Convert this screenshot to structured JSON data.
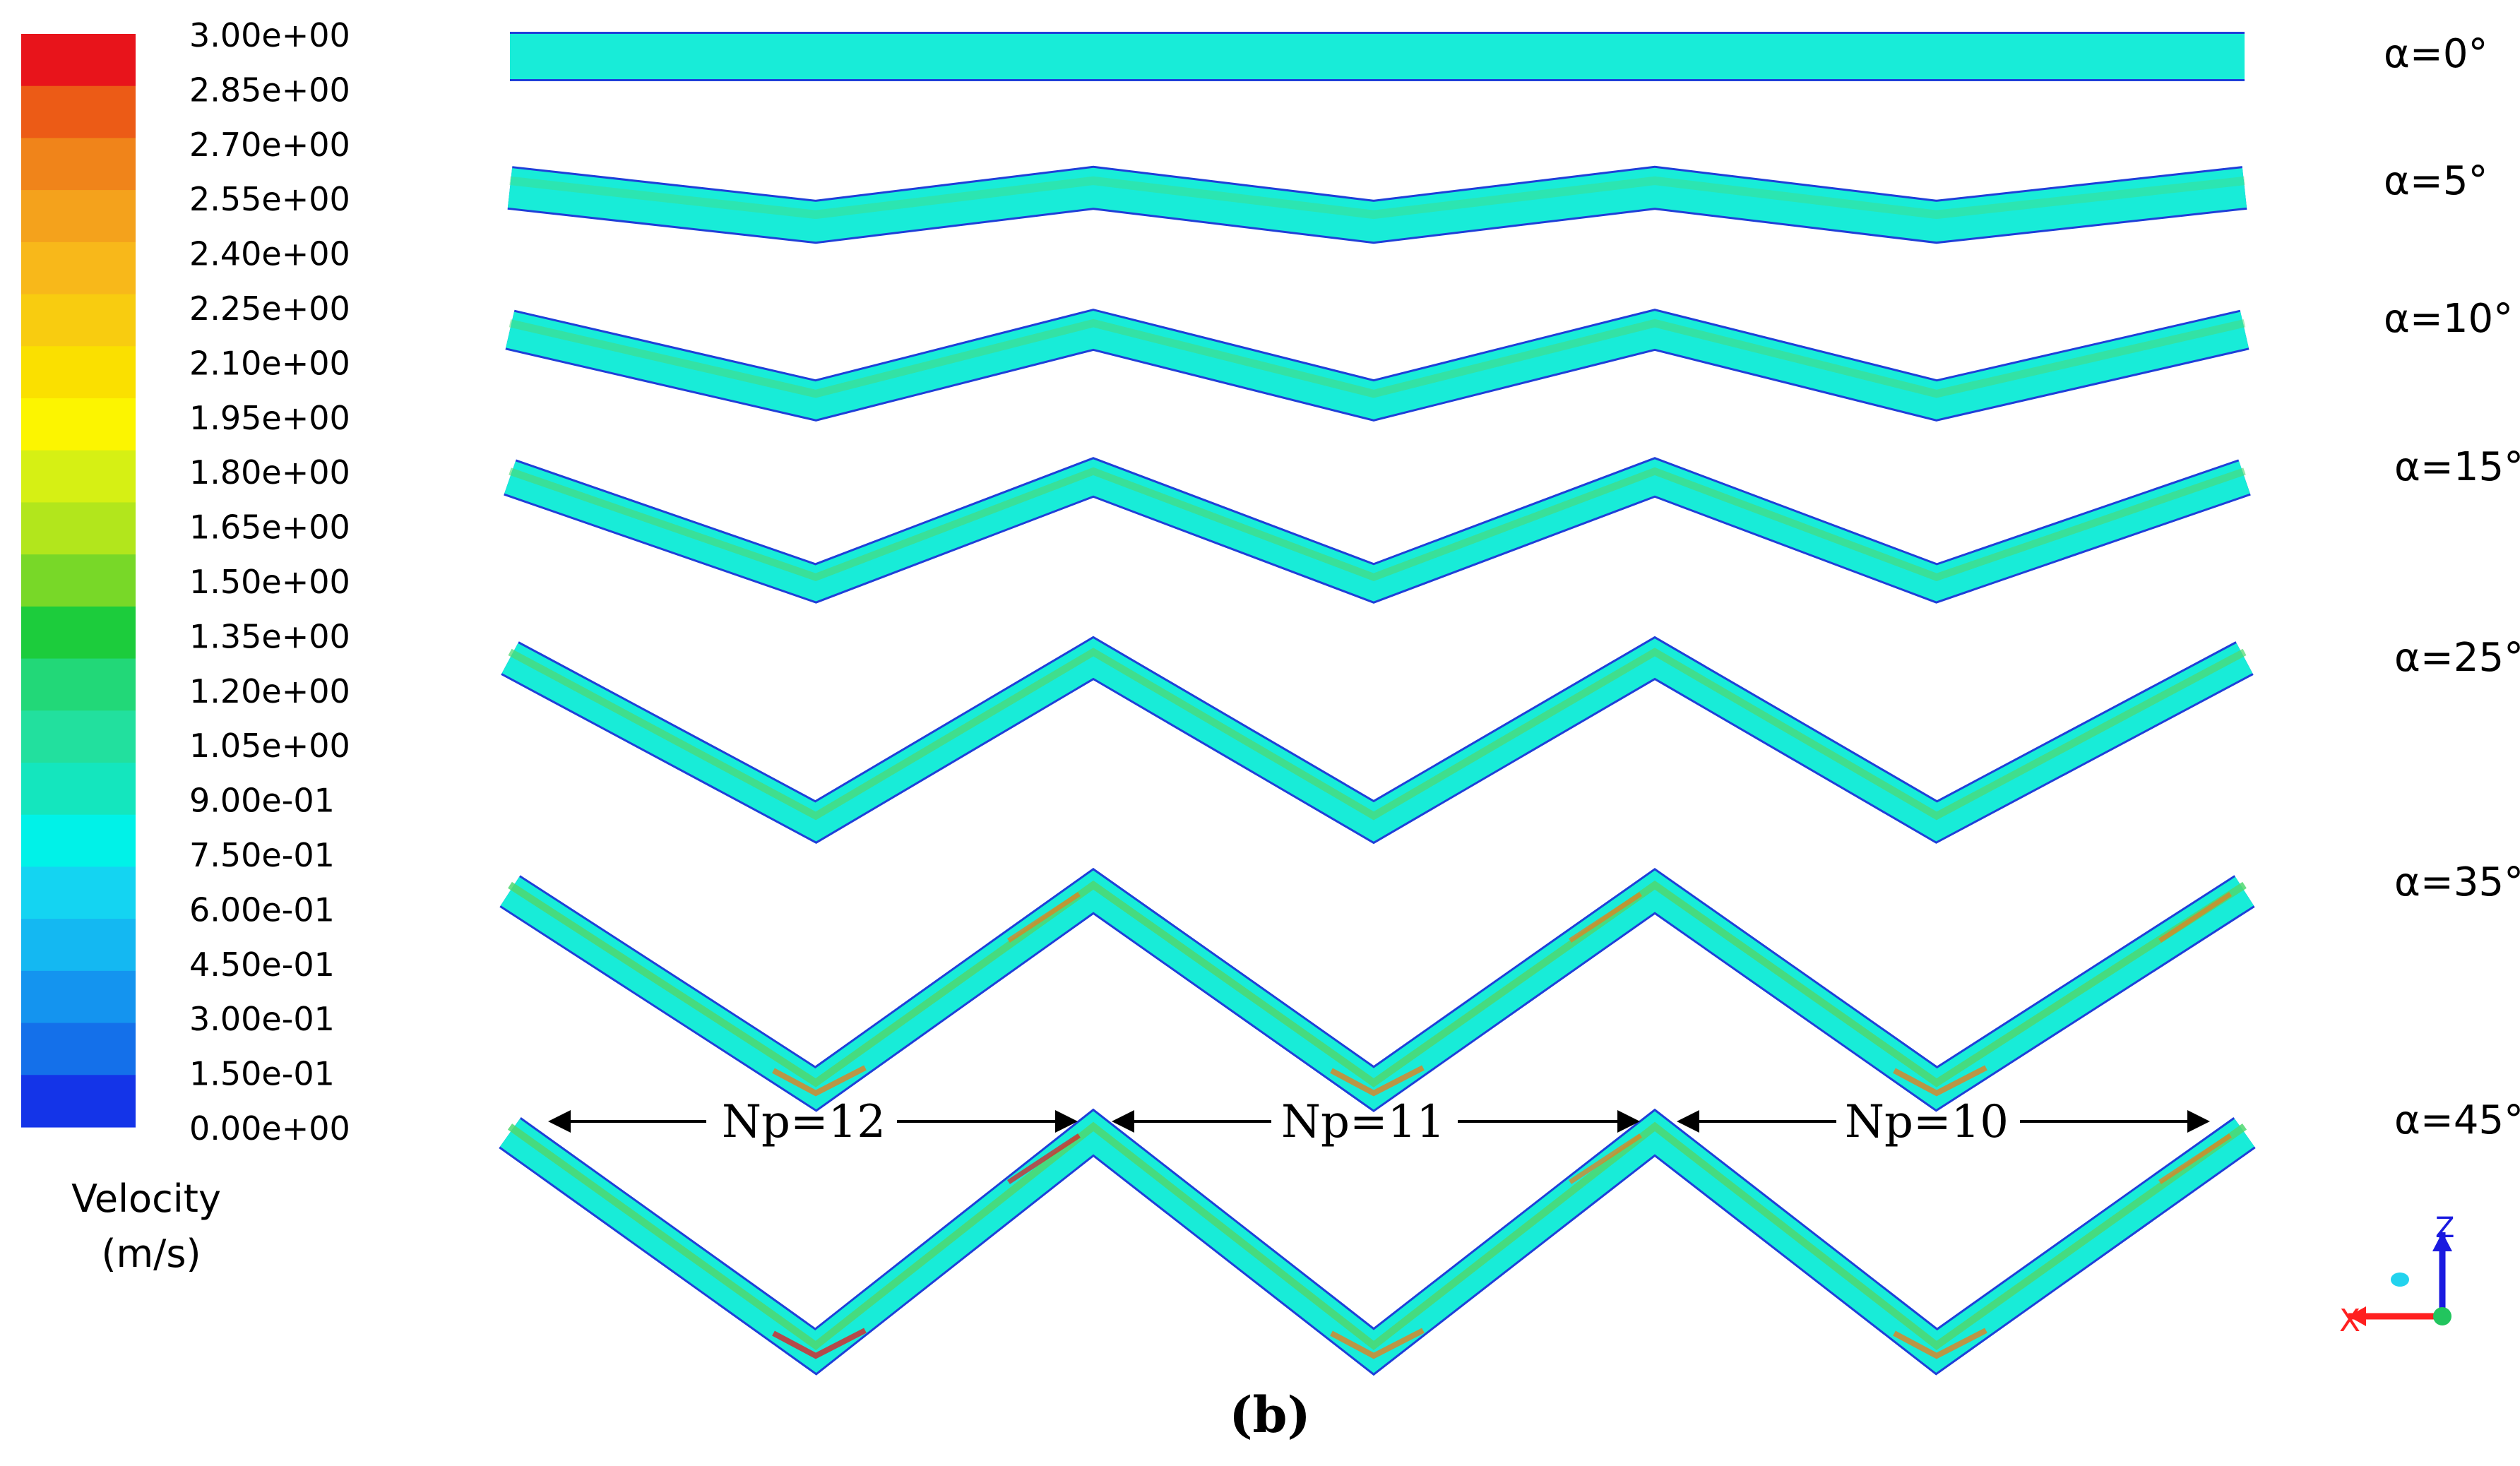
{
  "legend": {
    "title_line1": "Velocity",
    "title_line2": "(m/s)",
    "tick_labels": [
      "3.00e+00",
      "2.85e+00",
      "2.70e+00",
      "2.55e+00",
      "2.40e+00",
      "2.25e+00",
      "2.10e+00",
      "1.95e+00",
      "1.80e+00",
      "1.65e+00",
      "1.50e+00",
      "1.35e+00",
      "1.20e+00",
      "1.05e+00",
      "9.00e-01",
      "7.50e-01",
      "6.00e-01",
      "4.50e-01",
      "3.00e-01",
      "1.50e-01",
      "0.00e+00"
    ],
    "colors": [
      "#e8141b",
      "#ec5b16",
      "#f0841a",
      "#f4a21c",
      "#f8b81a",
      "#f8cc10",
      "#fae000",
      "#fcf500",
      "#d6f014",
      "#b2e61c",
      "#78d828",
      "#1ccc3c",
      "#22d878",
      "#22e09e",
      "#14e6be",
      "#00f2e8",
      "#14d4f2",
      "#14b8f2",
      "#1494ef",
      "#1470ea",
      "#1434e8"
    ]
  },
  "profiles": [
    {
      "label": "α=0°",
      "angle": 0
    },
    {
      "label": "α=5°",
      "angle": 5
    },
    {
      "label": "α=10°",
      "angle": 10
    },
    {
      "label": "α=15°",
      "angle": 15
    },
    {
      "label": "α=25°",
      "angle": 25
    },
    {
      "label": "α=35°",
      "angle": 35
    },
    {
      "label": "α=45°",
      "angle": 45
    }
  ],
  "pitch_labels": [
    "Np=12",
    "Np=11",
    "Np=10"
  ],
  "axes_triad": {
    "x_label": "X",
    "z_label": "Z"
  },
  "caption": "(b)",
  "colors": {
    "channel_fill": "#18ecd8",
    "channel_edge": "#1f3fd8",
    "wall_streak": "#4fd870",
    "hot_streak": "#f07a14",
    "max_streak": "#e8141b",
    "arrow": "#000000",
    "axis_x": "#ff2020",
    "axis_z": "#1a1ae0"
  }
}
